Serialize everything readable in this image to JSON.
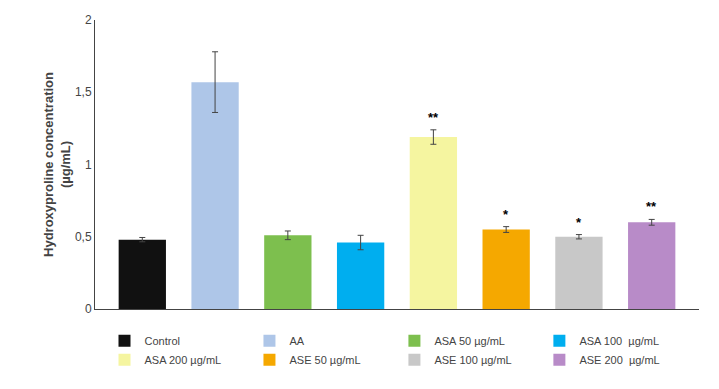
{
  "chart_data": {
    "type": "bar",
    "categories": [
      "Control",
      "AA",
      "ASA 50 µg/mL",
      "ASA 100  µg/mL",
      "ASA 200 µg/mL",
      "ASE 50 µg/mL",
      "ASE 100 µg/mL",
      "ASE 200  µg/mL"
    ],
    "values": [
      0.48,
      1.57,
      0.51,
      0.46,
      1.19,
      0.55,
      0.5,
      0.6
    ],
    "errors": [
      0.015,
      0.21,
      0.03,
      0.05,
      0.05,
      0.02,
      0.015,
      0.02
    ],
    "colors": [
      "#111111",
      "#aec6e8",
      "#7dbf4e",
      "#00aeef",
      "#f5f5a0",
      "#f5a800",
      "#c8c8c8",
      "#b88bc8"
    ],
    "annotations": [
      null,
      null,
      null,
      null,
      "**",
      "*",
      "*",
      "**"
    ],
    "ylabel": "Hydroxyproline concentration\n(µg/mL)",
    "ylim": [
      0,
      2.0
    ],
    "yticks": [
      0,
      {
        "value": 0.5,
        "label": "0,5"
      },
      1,
      {
        "value": 1.5,
        "label": "1,5"
      },
      2
    ],
    "tick_labels": "y",
    "grid": false,
    "legend": "bottom"
  }
}
